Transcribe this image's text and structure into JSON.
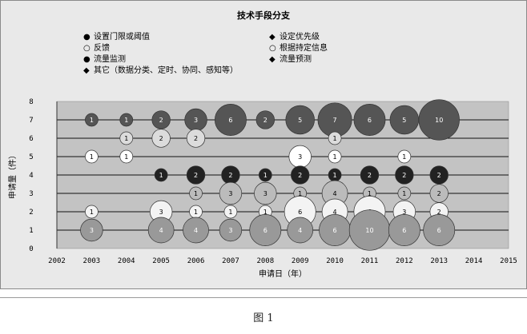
{
  "caption": "图 1",
  "chart_data": {
    "type": "scatter",
    "title": "技术手段分支",
    "xlabel": "申请日（年）",
    "ylabel": "申请量（件）",
    "xlim": [
      2002,
      2015
    ],
    "ylim": [
      0,
      8
    ],
    "x_ticks": [
      2002,
      2003,
      2004,
      2005,
      2006,
      2007,
      2008,
      2009,
      2010,
      2011,
      2012,
      2013,
      2014,
      2015
    ],
    "y_ticks": [
      0,
      1,
      2,
      3,
      4,
      5,
      6,
      7,
      8
    ],
    "grid": true,
    "legend_position": "top",
    "series": [
      {
        "name": "设置门限或阈值",
        "color": "#555555",
        "symbol": "dot",
        "points": [
          {
            "x": 2003,
            "y": 7,
            "v": 1
          },
          {
            "x": 2004,
            "y": 7,
            "v": 1
          },
          {
            "x": 2005,
            "y": 7,
            "v": 2
          },
          {
            "x": 2006,
            "y": 7,
            "v": 3
          },
          {
            "x": 2007,
            "y": 7,
            "v": 6
          },
          {
            "x": 2008,
            "y": 7,
            "v": 2
          },
          {
            "x": 2009,
            "y": 7,
            "v": 5
          },
          {
            "x": 2010,
            "y": 7,
            "v": 7
          },
          {
            "x": 2011,
            "y": 7,
            "v": 6
          },
          {
            "x": 2012,
            "y": 7,
            "v": 5
          },
          {
            "x": 2013,
            "y": 7,
            "v": 10
          }
        ]
      },
      {
        "name": "设定优先级",
        "color": "#dcdcdc",
        "symbol": "diamond",
        "points": [
          {
            "x": 2004,
            "y": 6,
            "v": 1
          },
          {
            "x": 2005,
            "y": 6,
            "v": 2
          },
          {
            "x": 2006,
            "y": 6,
            "v": 2
          },
          {
            "x": 2010,
            "y": 6,
            "v": 1
          }
        ]
      },
      {
        "name": "反馈",
        "color": "#ffffff",
        "symbol": "circle",
        "points": [
          {
            "x": 2003,
            "y": 5,
            "v": 1
          },
          {
            "x": 2004,
            "y": 5,
            "v": 1
          },
          {
            "x": 2009,
            "y": 5,
            "v": 3
          },
          {
            "x": 2010,
            "y": 5,
            "v": 1
          },
          {
            "x": 2012,
            "y": 5,
            "v": 1
          }
        ]
      },
      {
        "name": "根据持定信息",
        "color": "#222222",
        "symbol": "circle",
        "points": [
          {
            "x": 2005,
            "y": 4,
            "v": 1
          },
          {
            "x": 2006,
            "y": 4,
            "v": 2
          },
          {
            "x": 2007,
            "y": 4,
            "v": 2
          },
          {
            "x": 2008,
            "y": 4,
            "v": 1
          },
          {
            "x": 2009,
            "y": 4,
            "v": 2
          },
          {
            "x": 2010,
            "y": 4,
            "v": 1
          },
          {
            "x": 2011,
            "y": 4,
            "v": 2
          },
          {
            "x": 2012,
            "y": 4,
            "v": 2
          },
          {
            "x": 2013,
            "y": 4,
            "v": 2
          }
        ]
      },
      {
        "name": "流量监测",
        "color": "#bbbbbb",
        "symbol": "dot",
        "points": [
          {
            "x": 2006,
            "y": 3,
            "v": 1
          },
          {
            "x": 2007,
            "y": 3,
            "v": 3
          },
          {
            "x": 2008,
            "y": 3,
            "v": 3
          },
          {
            "x": 2009,
            "y": 3,
            "v": 1
          },
          {
            "x": 2010,
            "y": 3,
            "v": 4
          },
          {
            "x": 2011,
            "y": 3,
            "v": 1
          },
          {
            "x": 2012,
            "y": 3,
            "v": 1
          },
          {
            "x": 2013,
            "y": 3,
            "v": 2
          }
        ]
      },
      {
        "name": "流量预测",
        "color": "#f3f3f3",
        "symbol": "diamond",
        "points": [
          {
            "x": 2003,
            "y": 2,
            "v": 1
          },
          {
            "x": 2005,
            "y": 2,
            "v": 3
          },
          {
            "x": 2006,
            "y": 2,
            "v": 1
          },
          {
            "x": 2007,
            "y": 2,
            "v": 1
          },
          {
            "x": 2008,
            "y": 2,
            "v": 1
          },
          {
            "x": 2009,
            "y": 2,
            "v": 6
          },
          {
            "x": 2010,
            "y": 2,
            "v": 4
          },
          {
            "x": 2011,
            "y": 2,
            "v": 6
          },
          {
            "x": 2012,
            "y": 2,
            "v": 3
          },
          {
            "x": 2013,
            "y": 2,
            "v": 2
          }
        ]
      },
      {
        "name": "其它（数据分类、定时、协同、感知等）",
        "color": "#999999",
        "symbol": "diamond",
        "points": [
          {
            "x": 2003,
            "y": 1,
            "v": 3
          },
          {
            "x": 2005,
            "y": 1,
            "v": 4
          },
          {
            "x": 2006,
            "y": 1,
            "v": 4
          },
          {
            "x": 2007,
            "y": 1,
            "v": 3
          },
          {
            "x": 2008,
            "y": 1,
            "v": 6
          },
          {
            "x": 2009,
            "y": 1,
            "v": 4
          },
          {
            "x": 2010,
            "y": 1,
            "v": 6
          },
          {
            "x": 2011,
            "y": 1,
            "v": 10
          },
          {
            "x": 2012,
            "y": 1,
            "v": 6
          },
          {
            "x": 2013,
            "y": 1,
            "v": 6
          }
        ]
      }
    ],
    "legend_marks": {
      "dot": "●",
      "circle": "○",
      "diamond": "◆"
    }
  }
}
